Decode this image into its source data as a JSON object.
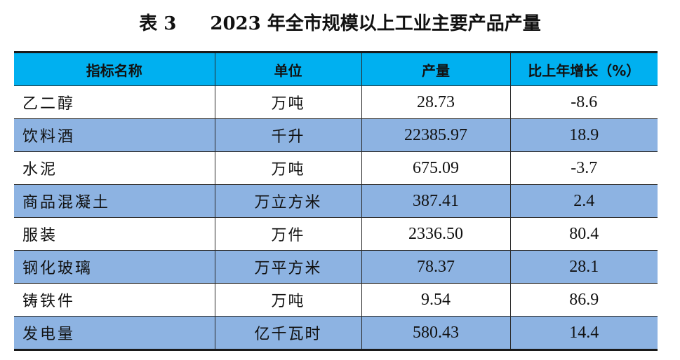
{
  "title": {
    "label": "表 3",
    "text": "2023 年全市规模以上工业主要产品产量"
  },
  "table": {
    "headers": [
      "指标名称",
      "单位",
      "产量",
      "比上年增长（%）"
    ],
    "rows": [
      {
        "name": "乙二醇",
        "unit": "万吨",
        "output": "28.73",
        "growth": "-8.6"
      },
      {
        "name": "饮料酒",
        "unit": "千升",
        "output": "22385.97",
        "growth": "18.9"
      },
      {
        "name": "水泥",
        "unit": "万吨",
        "output": "675.09",
        "growth": "-3.7"
      },
      {
        "name": "商品混凝土",
        "unit": "万立方米",
        "output": "387.41",
        "growth": "2.4"
      },
      {
        "name": "服装",
        "unit": "万件",
        "output": "2336.50",
        "growth": "80.4"
      },
      {
        "name": "钢化玻璃",
        "unit": "万平方米",
        "output": "78.37",
        "growth": "28.1"
      },
      {
        "name": "铸铁件",
        "unit": "万吨",
        "output": "9.54",
        "growth": "86.9"
      },
      {
        "name": "发电量",
        "unit": "亿千瓦时",
        "output": "580.43",
        "growth": "14.4"
      }
    ]
  },
  "colors": {
    "header_background": "#00b0f0",
    "shaded_row_background": "#8db3e2",
    "plain_row_background": "#ffffff"
  }
}
